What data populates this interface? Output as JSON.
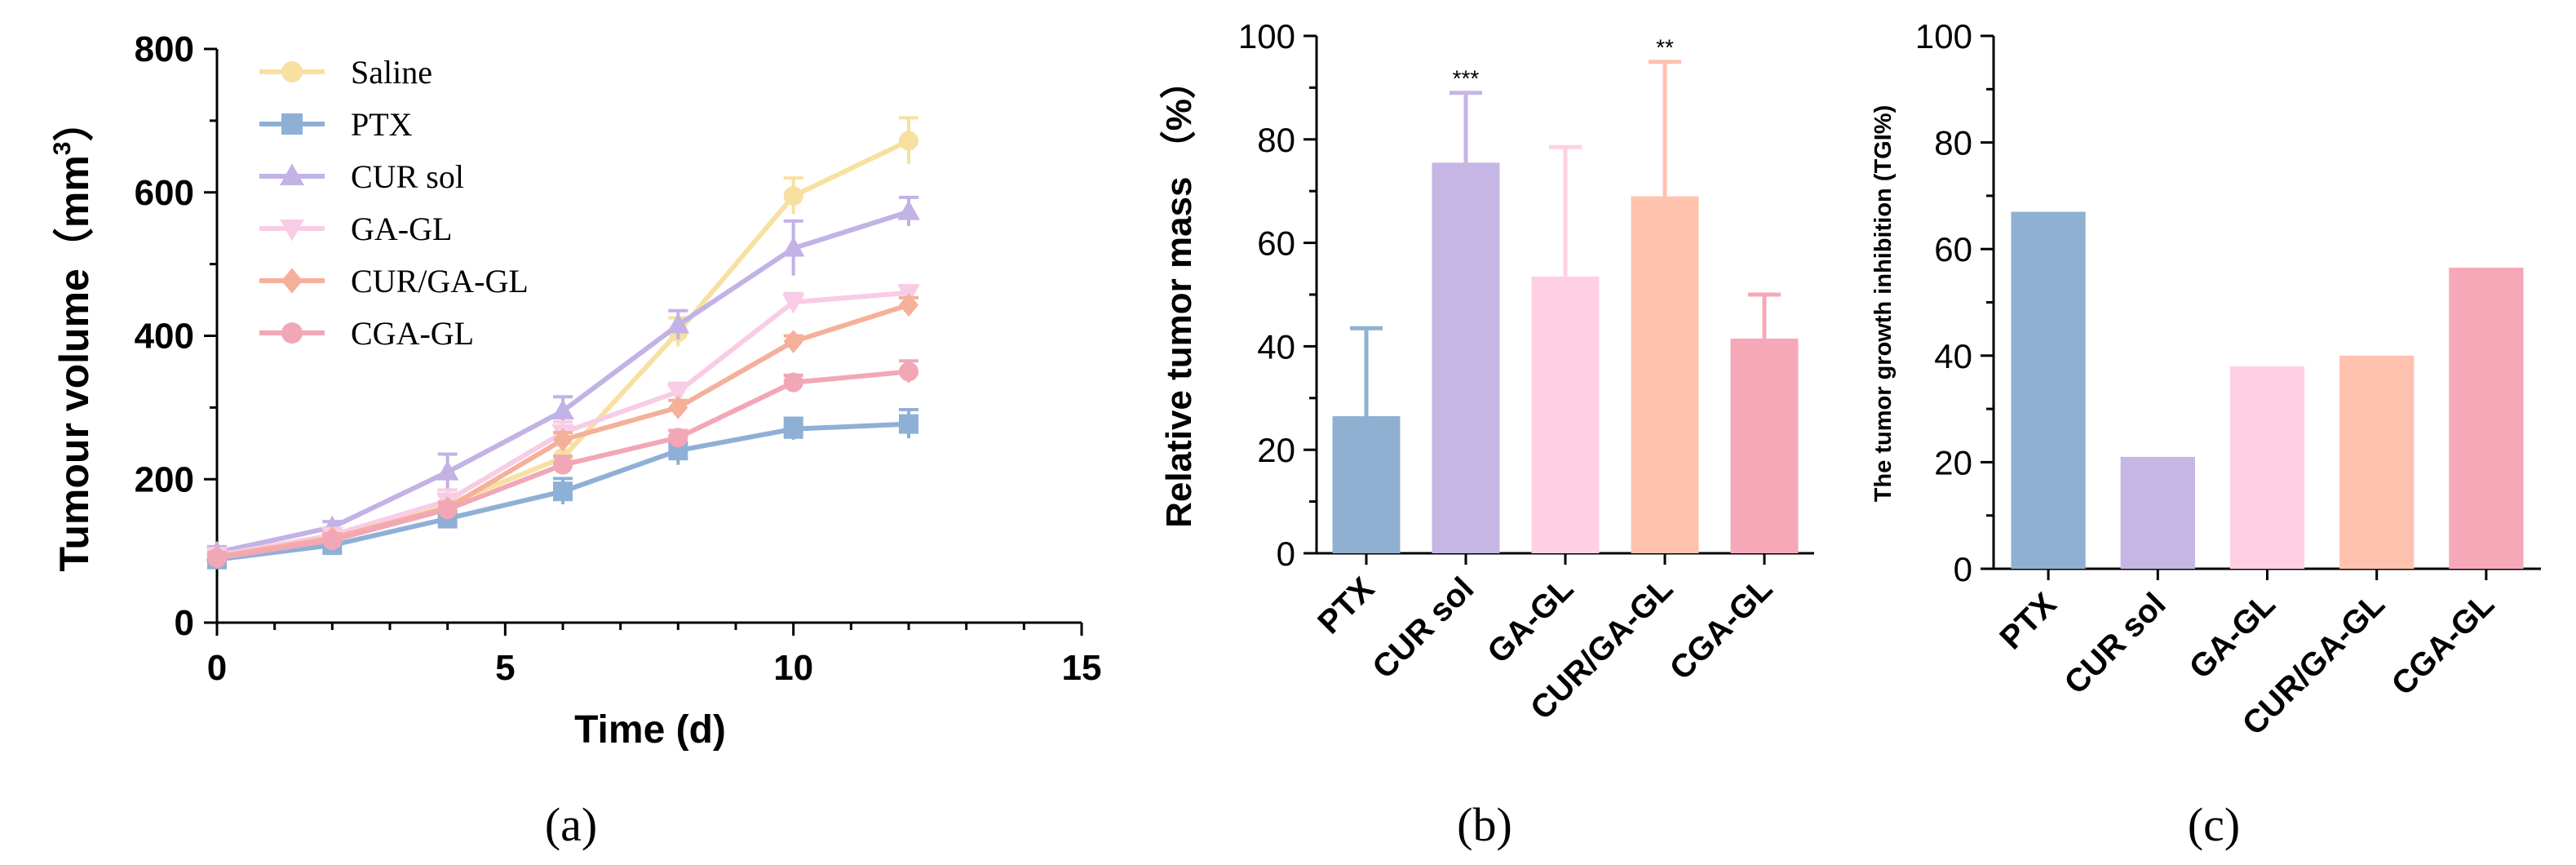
{
  "chart_data": [
    {
      "type": "line",
      "panel_label": "(a)",
      "xlabel": "Time (d)",
      "ylabel": "Tumour volume",
      "ylabel_unit": "（mm",
      "ylabel_exp": "3",
      "ylabel_close": "）",
      "xlim": [
        0,
        15
      ],
      "ylim": [
        0,
        800
      ],
      "xticks": [
        0,
        5,
        10,
        15
      ],
      "yticks": [
        0,
        200,
        400,
        600,
        800
      ],
      "x": [
        0,
        2,
        4,
        6,
        8,
        10,
        12
      ],
      "series": [
        {
          "name": "Saline",
          "color": "#F8E0A0",
          "marker": "circle",
          "values": [
            93,
            120,
            165,
            230,
            405,
            595,
            672
          ],
          "errors": [
            8,
            8,
            12,
            20,
            20,
            25,
            32
          ]
        },
        {
          "name": "PTX",
          "color": "#8FB0D6",
          "marker": "square",
          "values": [
            88,
            108,
            145,
            183,
            240,
            270,
            277
          ],
          "errors": [
            6,
            8,
            10,
            18,
            20,
            15,
            20
          ]
        },
        {
          "name": "CUR sol",
          "color": "#C2B2E5",
          "marker": "triangle-up",
          "values": [
            98,
            133,
            210,
            295,
            415,
            522,
            573
          ],
          "errors": [
            8,
            8,
            25,
            20,
            20,
            38,
            20
          ]
        },
        {
          "name": "GA-GL",
          "color": "#F9CCE6",
          "marker": "triangle-down",
          "values": [
            94,
            122,
            170,
            265,
            322,
            447,
            460
          ],
          "errors": [
            6,
            8,
            15,
            15,
            12,
            12,
            10
          ]
        },
        {
          "name": "CUR/GA-GL",
          "color": "#F5B09A",
          "marker": "diamond",
          "values": [
            92,
            118,
            160,
            255,
            300,
            392,
            443
          ],
          "errors": [
            6,
            6,
            8,
            10,
            10,
            8,
            10
          ]
        },
        {
          "name": "CGA-GL",
          "color": "#F2A7B6",
          "marker": "circle",
          "values": [
            90,
            115,
            158,
            220,
            258,
            335,
            350
          ],
          "errors": [
            6,
            6,
            8,
            12,
            10,
            10,
            15
          ]
        }
      ]
    },
    {
      "type": "bar",
      "panel_label": "(b)",
      "ylabel": "Relative tumor mass （%）",
      "ylim": [
        0,
        100
      ],
      "yticks": [
        0,
        20,
        40,
        60,
        80,
        100
      ],
      "categories": [
        "PTX",
        "CUR sol",
        "GA-GL",
        "CUR/GA-GL",
        "CGA-GL"
      ],
      "values": [
        26.5,
        75.5,
        53.5,
        69,
        41.5
      ],
      "errors": [
        17,
        13.5,
        25,
        26,
        8.5
      ],
      "significance": [
        "",
        "***",
        "",
        "**",
        ""
      ],
      "colors": [
        "#8FB0D1",
        "#C5B6E4",
        "#FFD0E3",
        "#FFC2AF",
        "#F6A8B9"
      ]
    },
    {
      "type": "bar",
      "panel_label": "(c)",
      "ylabel": "The tumor growth inhibition (TGI%)",
      "ylim": [
        0,
        100
      ],
      "yticks": [
        0,
        20,
        40,
        60,
        80,
        100
      ],
      "categories": [
        "PTX",
        "CUR sol",
        "GA-GL",
        "CUR/GA-GL",
        "CGA-GL"
      ],
      "values": [
        67,
        21,
        38,
        40,
        56.5
      ],
      "colors": [
        "#8FB0D1",
        "#C5B6E4",
        "#FFD0E3",
        "#FFC2AF",
        "#F6A8B9"
      ]
    }
  ]
}
